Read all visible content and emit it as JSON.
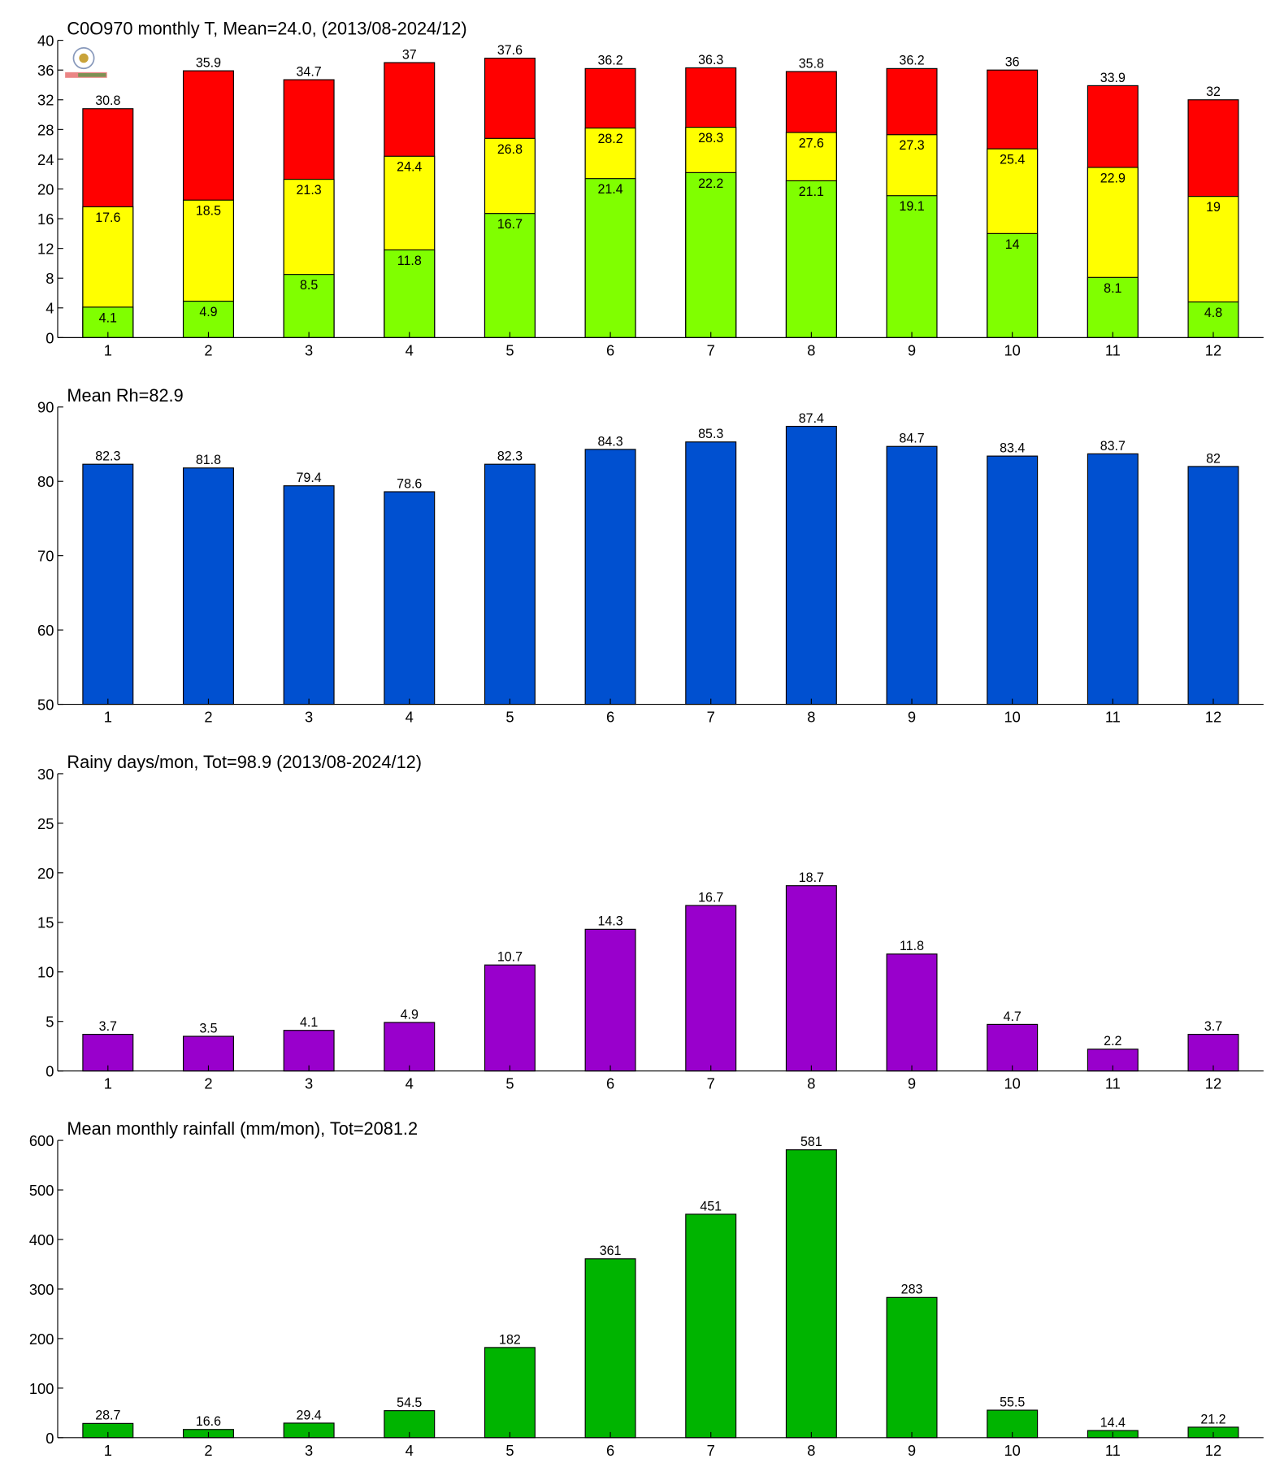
{
  "chart_data": [
    {
      "type": "overlaid_bar",
      "title": "C0O970 monthly T, Mean=24.0, (2013/08-2024/12)",
      "categories": [
        "1",
        "2",
        "3",
        "4",
        "5",
        "6",
        "7",
        "8",
        "9",
        "10",
        "11",
        "12"
      ],
      "series": [
        {
          "color": "#ff0000",
          "values": [
            30.8,
            35.9,
            34.7,
            37,
            37.6,
            36.2,
            36.3,
            35.8,
            36.2,
            36,
            33.9,
            32
          ]
        },
        {
          "color": "#ffff00",
          "values": [
            17.6,
            18.5,
            21.3,
            24.4,
            26.8,
            28.2,
            28.3,
            27.6,
            27.3,
            25.4,
            22.9,
            19
          ]
        },
        {
          "color": "#80ff00",
          "values": [
            4.1,
            4.9,
            8.5,
            11.8,
            16.7,
            21.4,
            22.2,
            21.1,
            19.1,
            14,
            8.1,
            4.8
          ]
        }
      ],
      "ylim": [
        0,
        40
      ],
      "yticks": [
        0,
        4,
        8,
        12,
        16,
        20,
        24,
        28,
        32,
        36,
        40
      ]
    },
    {
      "type": "bar",
      "title": "Mean Rh=82.9",
      "categories": [
        "1",
        "2",
        "3",
        "4",
        "5",
        "6",
        "7",
        "8",
        "9",
        "10",
        "11",
        "12"
      ],
      "values": [
        82.3,
        81.8,
        79.4,
        78.6,
        82.3,
        84.3,
        85.3,
        87.4,
        84.7,
        83.4,
        83.7,
        82
      ],
      "color": "#0050d0",
      "ylim": [
        50,
        90
      ],
      "yticks": [
        50,
        60,
        70,
        80,
        90
      ]
    },
    {
      "type": "bar",
      "title": "Rainy days/mon, Tot=98.9 (2013/08-2024/12)",
      "categories": [
        "1",
        "2",
        "3",
        "4",
        "5",
        "6",
        "7",
        "8",
        "9",
        "10",
        "11",
        "12"
      ],
      "values": [
        3.7,
        3.5,
        4.1,
        4.9,
        10.7,
        14.3,
        16.7,
        18.7,
        11.8,
        4.7,
        2.2,
        3.7
      ],
      "color": "#9900cc",
      "ylim": [
        0,
        30
      ],
      "yticks": [
        0,
        5,
        10,
        15,
        20,
        25,
        30
      ]
    },
    {
      "type": "bar",
      "title": "Mean monthly rainfall (mm/mon), Tot=2081.2",
      "categories": [
        "1",
        "2",
        "3",
        "4",
        "5",
        "6",
        "7",
        "8",
        "9",
        "10",
        "11",
        "12"
      ],
      "values": [
        28.7,
        16.6,
        29.4,
        54.5,
        182,
        361,
        451,
        581,
        283,
        55.5,
        14.4,
        21.2
      ],
      "color": "#00b400",
      "ylim": [
        0,
        600
      ],
      "yticks": [
        0,
        100,
        200,
        300,
        400,
        500,
        600
      ]
    }
  ]
}
